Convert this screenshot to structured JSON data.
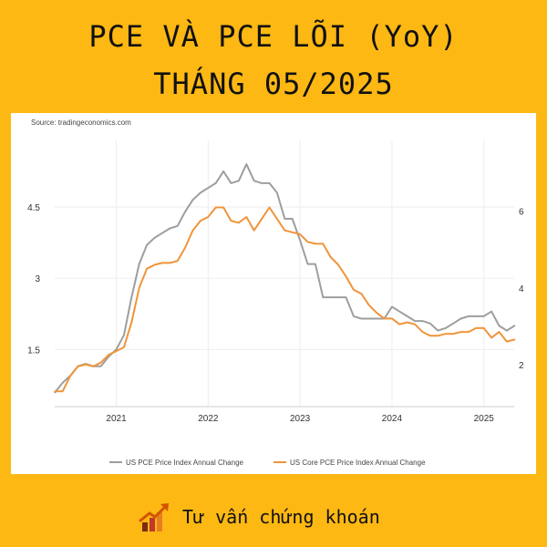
{
  "header": {
    "title_line1": "PCE VÀ PCE LÕI (YoY)",
    "title_line2": "THÁNG 05/2025"
  },
  "colors": {
    "background": "#FDB813",
    "pce_series": "#9E9E9E",
    "core_pce_series": "#F0943A"
  },
  "footer": {
    "icon": "rising-chart-arrow-icon",
    "text": "Tư vấn chứng khoán"
  },
  "chart_data": {
    "type": "line",
    "source": "Source: tradingeconomics.com",
    "title": "",
    "xlabel": "",
    "ylabel_left": "",
    "ylabel_right": "",
    "x_range": [
      2020.33,
      2025.33
    ],
    "x_ticks": [
      2021,
      2022,
      2023,
      2024,
      2025
    ],
    "x_tick_labels": [
      "2021",
      "2022",
      "2023",
      "2024",
      "2025"
    ],
    "left_axis": {
      "range": [
        0.3,
        5.9
      ],
      "ticks": [
        1.5,
        3,
        4.5
      ],
      "tick_labels": [
        "1.5",
        "3",
        "4.5"
      ]
    },
    "right_axis": {
      "range": [
        0.9,
        7.85
      ],
      "ticks": [
        2,
        4,
        6
      ],
      "tick_labels": [
        "2",
        "4",
        "6"
      ]
    },
    "grid": true,
    "legend_position": "bottom",
    "series": [
      {
        "name": "US PCE Price Index Annual Change",
        "axis": "left",
        "x": [
          "2020-05",
          "2020-06",
          "2020-07",
          "2020-08",
          "2020-09",
          "2020-10",
          "2020-11",
          "2020-12",
          "2021-01",
          "2021-02",
          "2021-03",
          "2021-04",
          "2021-05",
          "2021-06",
          "2021-07",
          "2021-08",
          "2021-09",
          "2021-10",
          "2021-11",
          "2021-12",
          "2022-01",
          "2022-02",
          "2022-03",
          "2022-04",
          "2022-05",
          "2022-06",
          "2022-07",
          "2022-08",
          "2022-09",
          "2022-10",
          "2022-11",
          "2022-12",
          "2023-01",
          "2023-02",
          "2023-03",
          "2023-04",
          "2023-05",
          "2023-06",
          "2023-07",
          "2023-08",
          "2023-09",
          "2023-10",
          "2023-11",
          "2023-12",
          "2024-01",
          "2024-02",
          "2024-03",
          "2024-04",
          "2024-05",
          "2024-06",
          "2024-07",
          "2024-08",
          "2024-09",
          "2024-10",
          "2024-11",
          "2024-12",
          "2025-01",
          "2025-02",
          "2025-03",
          "2025-04",
          "2025-05"
        ],
        "y": [
          0.6,
          0.8,
          0.95,
          1.15,
          1.2,
          1.15,
          1.15,
          1.35,
          1.5,
          1.8,
          2.6,
          3.3,
          3.7,
          3.85,
          3.95,
          4.05,
          4.1,
          4.4,
          4.65,
          4.8,
          4.9,
          5.0,
          5.25,
          5.0,
          5.05,
          5.4,
          5.05,
          5.0,
          5.0,
          4.8,
          4.25,
          4.25,
          3.8,
          3.3,
          3.3,
          2.6,
          2.6,
          2.6,
          2.6,
          2.2,
          2.15,
          2.15,
          2.15,
          2.15,
          2.4,
          2.3,
          2.2,
          2.1,
          2.1,
          2.05,
          1.9,
          1.95,
          2.05,
          2.15,
          2.2,
          2.2,
          2.2,
          2.3,
          2.0,
          1.9,
          2.0
        ]
      },
      {
        "name": "US Core PCE Price Index Annual Change",
        "axis": "right",
        "x": [
          "2020-05",
          "2020-06",
          "2020-07",
          "2020-08",
          "2020-09",
          "2020-10",
          "2020-11",
          "2020-12",
          "2021-01",
          "2021-02",
          "2021-03",
          "2021-04",
          "2021-05",
          "2021-06",
          "2021-07",
          "2021-08",
          "2021-09",
          "2021-10",
          "2021-11",
          "2021-12",
          "2022-01",
          "2022-02",
          "2022-03",
          "2022-04",
          "2022-05",
          "2022-06",
          "2022-07",
          "2022-08",
          "2022-09",
          "2022-10",
          "2022-11",
          "2022-12",
          "2023-01",
          "2023-02",
          "2023-03",
          "2023-04",
          "2023-05",
          "2023-06",
          "2023-07",
          "2023-08",
          "2023-09",
          "2023-10",
          "2023-11",
          "2023-12",
          "2024-01",
          "2024-02",
          "2024-03",
          "2024-04",
          "2024-05",
          "2024-06",
          "2024-07",
          "2024-08",
          "2024-09",
          "2024-10",
          "2024-11",
          "2024-12",
          "2025-01",
          "2025-02",
          "2025-03",
          "2025-04",
          "2025-05"
        ],
        "y": [
          1.3,
          1.3,
          1.7,
          1.95,
          2.0,
          1.95,
          2.05,
          2.25,
          2.35,
          2.45,
          3.1,
          4.0,
          4.5,
          4.6,
          4.65,
          4.65,
          4.7,
          5.05,
          5.5,
          5.75,
          5.85,
          6.1,
          6.1,
          5.75,
          5.7,
          5.85,
          5.5,
          5.8,
          6.1,
          5.8,
          5.5,
          5.45,
          5.4,
          5.2,
          5.15,
          5.15,
          4.8,
          4.6,
          4.3,
          3.95,
          3.85,
          3.55,
          3.35,
          3.2,
          3.2,
          3.05,
          3.1,
          3.05,
          2.85,
          2.75,
          2.75,
          2.8,
          2.8,
          2.85,
          2.85,
          2.95,
          2.95,
          2.7,
          2.85,
          2.6,
          2.65
        ]
      }
    ]
  }
}
